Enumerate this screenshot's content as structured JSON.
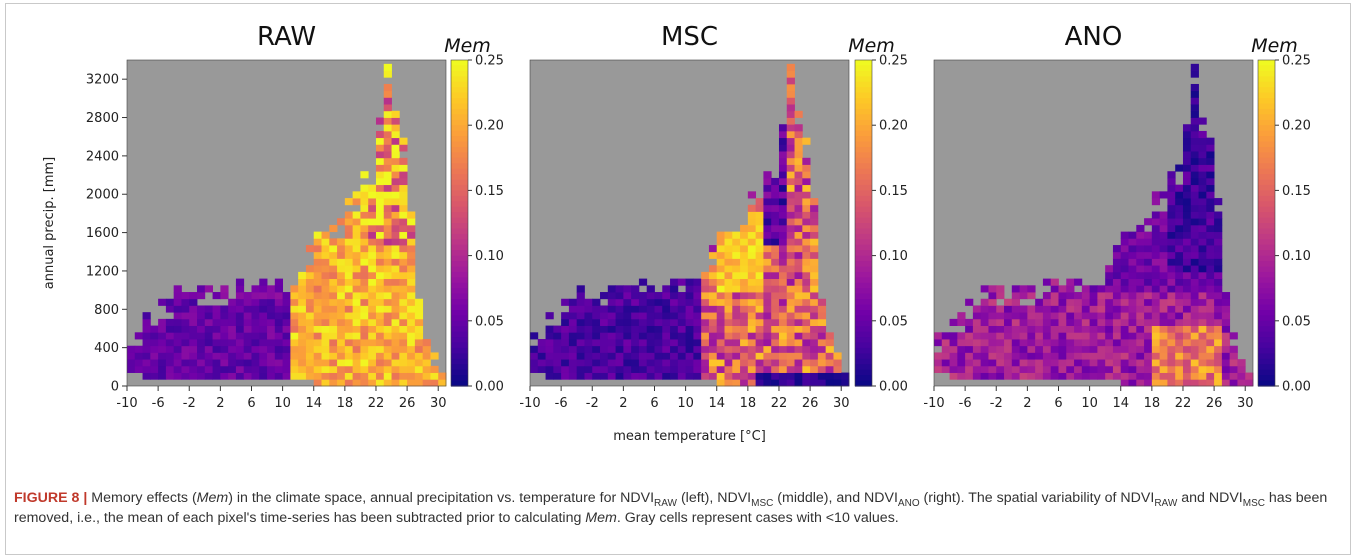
{
  "colors": {
    "missing": "#999999",
    "colormap": [
      "#0d0887",
      "#46039f",
      "#7201a8",
      "#9c179e",
      "#bd3786",
      "#d8576b",
      "#ed7953",
      "#fb9f3a",
      "#fdca26",
      "#f0f921"
    ]
  },
  "chart_data": [
    {
      "type": "heatmap",
      "title": "RAW",
      "colorbar_label": "Mem",
      "colorbar_range": [
        0,
        0.25
      ],
      "colorbar_ticks": [
        "0.00",
        "0.05",
        "0.10",
        "0.15",
        "0.20",
        "0.25"
      ],
      "xlabel": "",
      "ylabel": "annual precip. [mm]",
      "xlim": [
        -10,
        31
      ],
      "ylim": [
        0,
        3400
      ],
      "xticks": [
        -10,
        -6,
        -2,
        2,
        6,
        10,
        14,
        18,
        22,
        26,
        30
      ],
      "yticks": [
        0,
        400,
        800,
        1200,
        1600,
        2000,
        2400,
        2800,
        3200
      ],
      "pattern": "raw"
    },
    {
      "type": "heatmap",
      "title": "MSC",
      "colorbar_label": "Mem",
      "colorbar_range": [
        0,
        0.25
      ],
      "colorbar_ticks": [
        "0.00",
        "0.05",
        "0.10",
        "0.15",
        "0.20",
        "0.25"
      ],
      "xlabel": "mean temperature [°C]",
      "ylabel": "",
      "xlim": [
        -10,
        31
      ],
      "ylim": [
        0,
        3400
      ],
      "xticks": [
        -10,
        -6,
        -2,
        2,
        6,
        10,
        14,
        18,
        22,
        26,
        30
      ],
      "yticks": [],
      "pattern": "msc"
    },
    {
      "type": "heatmap",
      "title": "ANO",
      "colorbar_label": "Mem",
      "colorbar_range": [
        0,
        0.25
      ],
      "colorbar_ticks": [
        "0.00",
        "0.05",
        "0.10",
        "0.15",
        "0.20",
        "0.25"
      ],
      "xlabel": "",
      "ylabel": "",
      "xlim": [
        -10,
        31
      ],
      "ylim": [
        0,
        3400
      ],
      "xticks": [
        -10,
        -6,
        -2,
        2,
        6,
        10,
        14,
        18,
        22,
        26,
        30
      ],
      "yticks": [],
      "pattern": "ano"
    }
  ],
  "caption": {
    "label": "FIGURE 8 |",
    "t1": " Memory effects (",
    "mem": "Mem",
    "t2": ") in the climate space, annual precipitation vs. temperature for NDVI",
    "s_raw": "RAW",
    "t3": " (left), NDVI",
    "s_msc": "MSC",
    "t4": " (middle), and NDVI",
    "s_ano": "ANO",
    "t5": " (right). The spatial variability of NDVI",
    "s_raw2": "RAW",
    "t6": " and NDVI",
    "s_msc2": "MSC",
    "t7": " has been removed, i.e., the mean of each pixel's time-series has been subtracted prior to calculating ",
    "mem2": "Mem",
    "t8": ". Gray cells represent cases with <10 values."
  }
}
